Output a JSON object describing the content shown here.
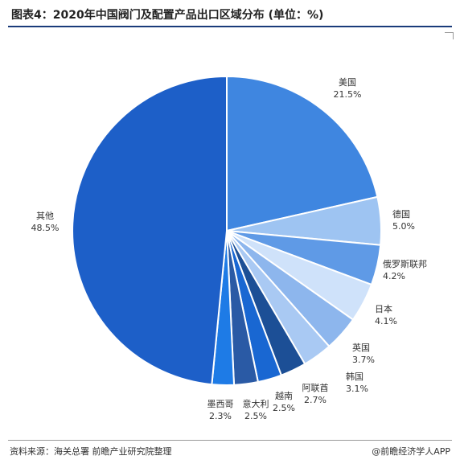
{
  "title": "图表4：2020年中国阀门及配置产品出口区域分布 (单位：%)",
  "source": "资料来源：海关总署 前瞻产业研究院整理",
  "brand": "@前瞻经济学人APP",
  "chart_data": {
    "type": "pie",
    "categories": [
      "美国",
      "德国",
      "俄罗斯联邦",
      "日本",
      "英国",
      "韩国",
      "阿联酋",
      "越南",
      "意大利",
      "墨西哥",
      "其他"
    ],
    "values": [
      21.5,
      5.0,
      4.2,
      4.1,
      3.7,
      3.1,
      2.7,
      2.5,
      2.5,
      2.3,
      48.5
    ],
    "value_labels": [
      "21.5%",
      "5.0%",
      "4.2%",
      "4.1%",
      "3.7%",
      "3.1%",
      "2.7%",
      "2.5%",
      "2.5%",
      "2.3%",
      "48.5%"
    ],
    "colors": [
      "#3f86e0",
      "#9ec4f2",
      "#5f9ae6",
      "#cfe2fa",
      "#8db6ed",
      "#a9c9f3",
      "#1c4f96",
      "#1967d2",
      "#2a5aa5",
      "#1e7be6",
      "#1d5fc8"
    ],
    "start_angle": "12 o'clock",
    "direction": "clockwise",
    "title": "",
    "legend": "none"
  }
}
